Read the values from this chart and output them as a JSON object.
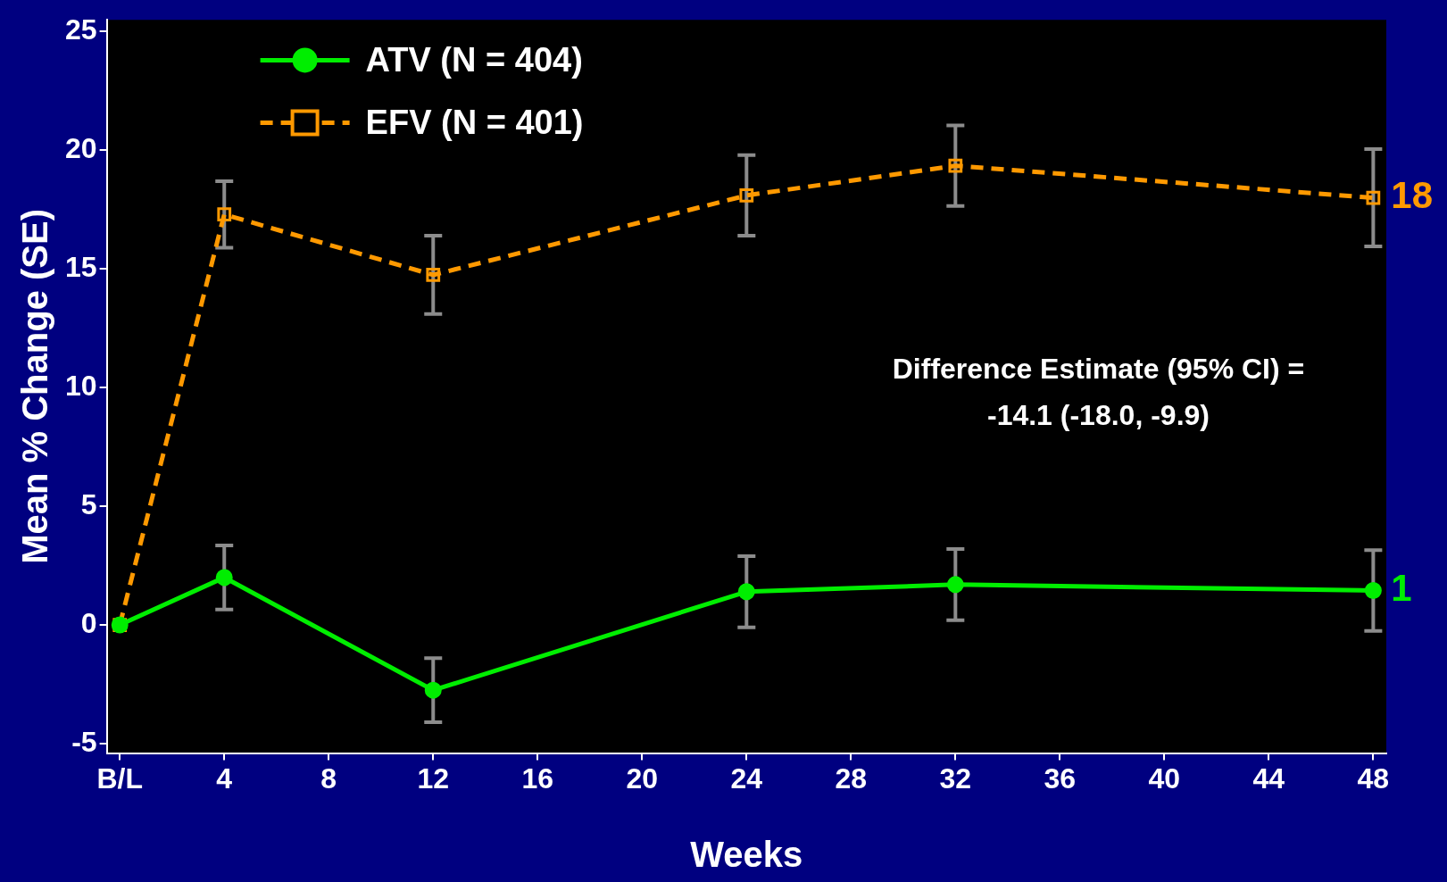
{
  "chart_data": {
    "type": "line",
    "xlabel": "Weeks",
    "ylabel": "Mean % Change (SE)",
    "x": [
      0,
      4,
      12,
      24,
      32,
      48
    ],
    "series": [
      {
        "name": "ATV (N = 404)",
        "color": "#00ee00",
        "marker": "circle",
        "line_style": "solid",
        "values": [
          0,
          2.0,
          -2.75,
          1.4,
          1.7,
          1.45
        ],
        "errors": [
          null,
          1.35,
          1.35,
          1.5,
          1.5,
          1.7
        ]
      },
      {
        "name": "EFV (N = 401)",
        "color": "#ff9900",
        "marker": "square",
        "line_style": "dashed",
        "values": [
          0,
          17.3,
          14.75,
          18.1,
          19.35,
          18.0
        ],
        "errors": [
          null,
          1.4,
          1.65,
          1.7,
          1.7,
          2.05
        ]
      }
    ],
    "xlim": [
      -0.5,
      48.5
    ],
    "xticks": [
      {
        "value": 0,
        "label": "B/L"
      },
      4,
      8,
      12,
      16,
      20,
      24,
      28,
      32,
      36,
      40,
      44,
      48
    ],
    "ylim": [
      -5.4,
      25.5
    ],
    "yticks": [
      -5,
      0,
      5,
      10,
      15,
      20,
      25
    ],
    "grid": false,
    "legend": "top left",
    "annotations": [
      {
        "text": "18",
        "x": 48,
        "y": 18.0
      },
      {
        "text": "1",
        "x": 48,
        "y": 1.45
      },
      "Difference Estimate (95% CI) =\n-14.1 (-18.0, -9.9)"
    ]
  }
}
